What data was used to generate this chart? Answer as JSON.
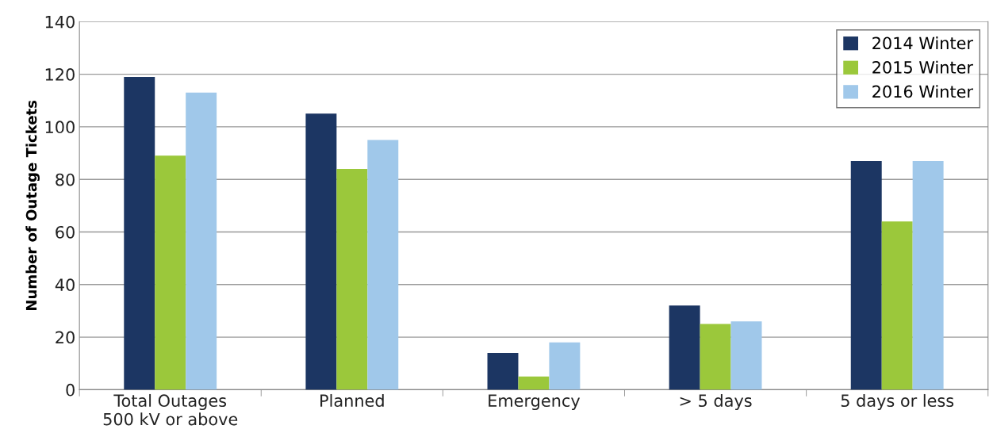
{
  "chart_data": {
    "type": "bar",
    "ylabel": "Number of Outage Tickets",
    "categories": [
      "Total Outages\n500 kV or above",
      "Planned",
      "Emergency",
      "> 5 days",
      "5 days or less"
    ],
    "series": [
      {
        "name": "2014 Winter",
        "color": "#1c3663",
        "values": [
          119,
          105,
          14,
          32,
          87
        ]
      },
      {
        "name": "2015 Winter",
        "color": "#9bc83b",
        "values": [
          89,
          84,
          5,
          25,
          64
        ]
      },
      {
        "name": "2016 Winter",
        "color": "#a0c8ea",
        "values": [
          113,
          95,
          18,
          26,
          87
        ]
      }
    ],
    "ylim": [
      0,
      140
    ],
    "yticks": [
      0,
      20,
      40,
      60,
      80,
      100,
      120,
      140
    ],
    "grid": "y",
    "legend": "top right"
  }
}
